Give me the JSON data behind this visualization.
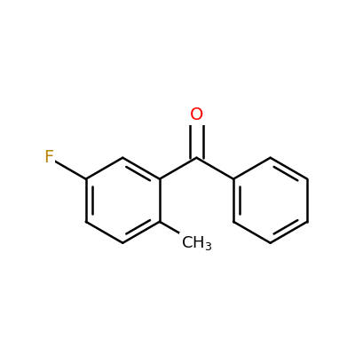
{
  "background_color": "#ffffff",
  "bond_color": "#000000",
  "bond_width": 1.8,
  "F_color": "#b8860b",
  "O_color": "#ff0000",
  "CH3_color": "#000000",
  "font_size_atom": 14,
  "xlim": [
    -0.1,
    1.05
  ],
  "ylim": [
    0.05,
    1.0
  ]
}
